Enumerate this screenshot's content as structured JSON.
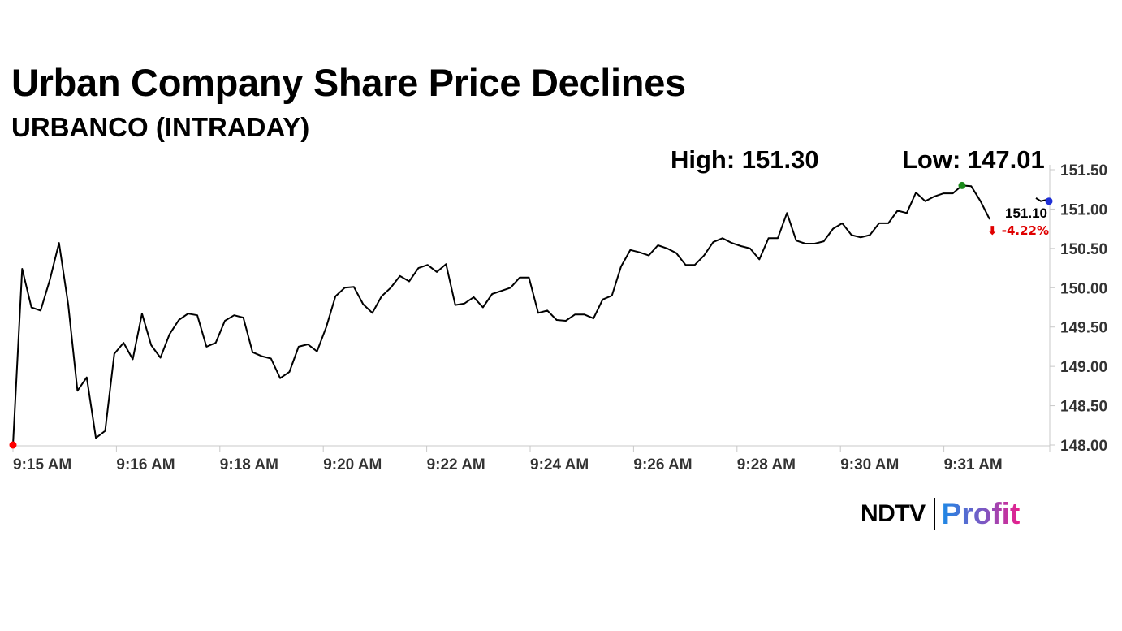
{
  "header": {
    "title": "Urban Company Share Price Declines",
    "subtitle": "URBANCO (INTRADAY)"
  },
  "stats": {
    "high_text": "High: 151.30",
    "low_text": "Low: 147.01"
  },
  "last_price": {
    "value_text": "151.10",
    "change_text": "⬇ -4.22%",
    "change_color": "#e00000"
  },
  "brand": {
    "ndtv": "NDTV",
    "profit": "Profit"
  },
  "colors": {
    "line": "#000000",
    "start_marker": "#ff0000",
    "high_marker": "#1a8a1a",
    "end_marker": "#1f2fd6",
    "axis": "#c8c8c8"
  },
  "chart_data": {
    "type": "line",
    "title": "Urban Company Share Price Declines",
    "subtitle": "URBANCO (INTRADAY)",
    "ylim": [
      148.0,
      151.5
    ],
    "y_ticks": [
      151.5,
      151.0,
      150.5,
      150.0,
      149.5,
      149.0,
      148.5,
      148.0
    ],
    "y_tick_labels": [
      "151.50",
      "151.00",
      "150.50",
      "150.00",
      "149.50",
      "149.00",
      "148.50",
      "148.00"
    ],
    "x_tick_labels": [
      "9:15 AM",
      "9:16 AM",
      "9:18 AM",
      "9:20 AM",
      "9:22 AM",
      "9:24 AM",
      "9:26 AM",
      "9:28 AM",
      "9:30 AM",
      "9:31 AM"
    ],
    "grid": false,
    "series": [
      {
        "values": [
          148.0,
          150.24,
          149.75,
          149.71,
          150.1,
          150.57,
          149.78,
          148.69,
          148.86,
          148.09,
          148.18,
          149.16,
          149.3,
          149.09,
          149.67,
          149.27,
          149.11,
          149.41,
          149.59,
          149.67,
          149.65,
          149.25,
          149.3,
          149.58,
          149.65,
          149.62,
          149.18,
          149.13,
          149.1,
          148.85,
          148.93,
          149.25,
          149.28,
          149.19,
          149.5,
          149.89,
          150.0,
          150.01,
          149.79,
          149.68,
          149.89,
          150.0,
          150.15,
          150.08,
          150.25,
          150.29,
          150.2,
          150.3,
          149.78,
          149.8,
          149.88,
          149.75,
          149.92,
          149.96,
          150.0,
          150.13,
          150.13,
          149.68,
          149.71,
          149.59,
          149.58,
          149.66,
          149.66,
          149.61,
          149.85,
          149.9,
          150.27,
          150.48,
          150.45,
          150.41,
          150.54,
          150.5,
          150.44,
          150.29,
          150.29,
          150.41,
          150.58,
          150.63,
          150.57,
          150.53,
          150.5,
          150.36,
          150.63,
          150.63,
          150.95,
          150.6,
          150.56,
          150.56,
          150.59,
          150.75,
          150.82,
          150.67,
          150.64,
          150.67,
          150.82,
          150.82,
          150.98,
          150.95,
          151.21,
          151.1,
          151.16,
          151.2,
          151.2,
          151.3,
          151.29,
          151.1,
          150.87
        ],
        "tail_values": [
          151.14,
          151.1,
          151.12
        ]
      }
    ],
    "markers": {
      "start": 148.0,
      "high": 151.3,
      "end": 151.1
    }
  }
}
